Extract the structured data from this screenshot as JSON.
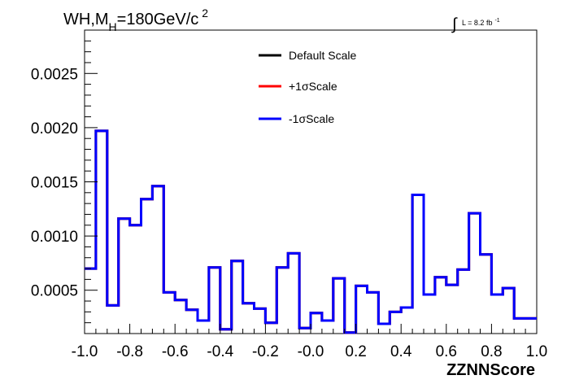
{
  "chart_data": {
    "type": "line",
    "title": "WH,M",
    "title_sub": "H",
    "title_rest": "=180GeV/c",
    "title_sup": "2",
    "lumi_label": "L = 8.2 fb",
    "lumi_sup": "-1",
    "integral_symbol": "∫",
    "xlabel": "ZZNNScore",
    "ylabel": "",
    "xlim": [
      -1.0,
      1.0
    ],
    "ylim": [
      0.0001,
      0.0029
    ],
    "x_ticks": [
      -1.0,
      -0.8,
      -0.6,
      -0.4,
      -0.2,
      0.0,
      0.2,
      0.4,
      0.6,
      0.8,
      1.0
    ],
    "x_tick_labels": [
      "-1.0",
      "-0.8",
      "-0.6",
      "-0.4",
      "-0.2",
      "-0.0",
      "0.2",
      "0.4",
      "0.6",
      "0.8",
      "1.0"
    ],
    "y_ticks": [
      0.0005,
      0.001,
      0.0015,
      0.002,
      0.0025
    ],
    "y_tick_labels": [
      "0.0005",
      "0.0010",
      "0.0015",
      "0.0020",
      "0.0025"
    ],
    "bins": {
      "low": -1.0,
      "width": 0.05,
      "count": 40
    },
    "legend_position": "top-center",
    "series": [
      {
        "name": "Default Scale",
        "color": "#000000",
        "values": [
          0.0007,
          0.00197,
          0.00036,
          0.00116,
          0.0011,
          0.00134,
          0.00146,
          0.00048,
          0.00041,
          0.00032,
          0.00022,
          0.00071,
          0.00014,
          0.00077,
          0.00038,
          0.00033,
          0.0002,
          0.00071,
          0.00084,
          0.00015,
          0.00029,
          0.00022,
          0.00061,
          0.00011,
          0.00054,
          0.00048,
          0.00019,
          0.0003,
          0.00034,
          0.00138,
          0.00046,
          0.00062,
          0.00055,
          0.00069,
          0.00121,
          0.00083,
          0.00046,
          0.00052,
          0.00024,
          0.00024
        ]
      },
      {
        "name": "+1σScale",
        "color": "#ff0000",
        "values": [
          0.0007,
          0.00197,
          0.00036,
          0.00116,
          0.0011,
          0.00134,
          0.00146,
          0.00048,
          0.00041,
          0.00032,
          0.00022,
          0.00071,
          0.00014,
          0.00077,
          0.00038,
          0.00033,
          0.0002,
          0.00071,
          0.00084,
          0.00015,
          0.00029,
          0.00022,
          0.00061,
          0.00011,
          0.00054,
          0.00048,
          0.00019,
          0.0003,
          0.00034,
          0.00138,
          0.00046,
          0.00062,
          0.00055,
          0.00069,
          0.00121,
          0.00083,
          0.00046,
          0.00052,
          0.00024,
          0.00024
        ]
      },
      {
        "name": "-1σScale",
        "color": "#0000ff",
        "values": [
          0.0007,
          0.00197,
          0.00036,
          0.00116,
          0.0011,
          0.00134,
          0.00146,
          0.00048,
          0.00041,
          0.00032,
          0.00022,
          0.00071,
          0.00014,
          0.00077,
          0.00038,
          0.00033,
          0.0002,
          0.00071,
          0.00084,
          0.00015,
          0.00029,
          0.00022,
          0.00061,
          0.00011,
          0.00054,
          0.00048,
          0.00019,
          0.0003,
          0.00034,
          0.00138,
          0.00046,
          0.00062,
          0.00055,
          0.00069,
          0.00121,
          0.00083,
          0.00046,
          0.00052,
          0.00024,
          0.00024
        ]
      }
    ]
  }
}
